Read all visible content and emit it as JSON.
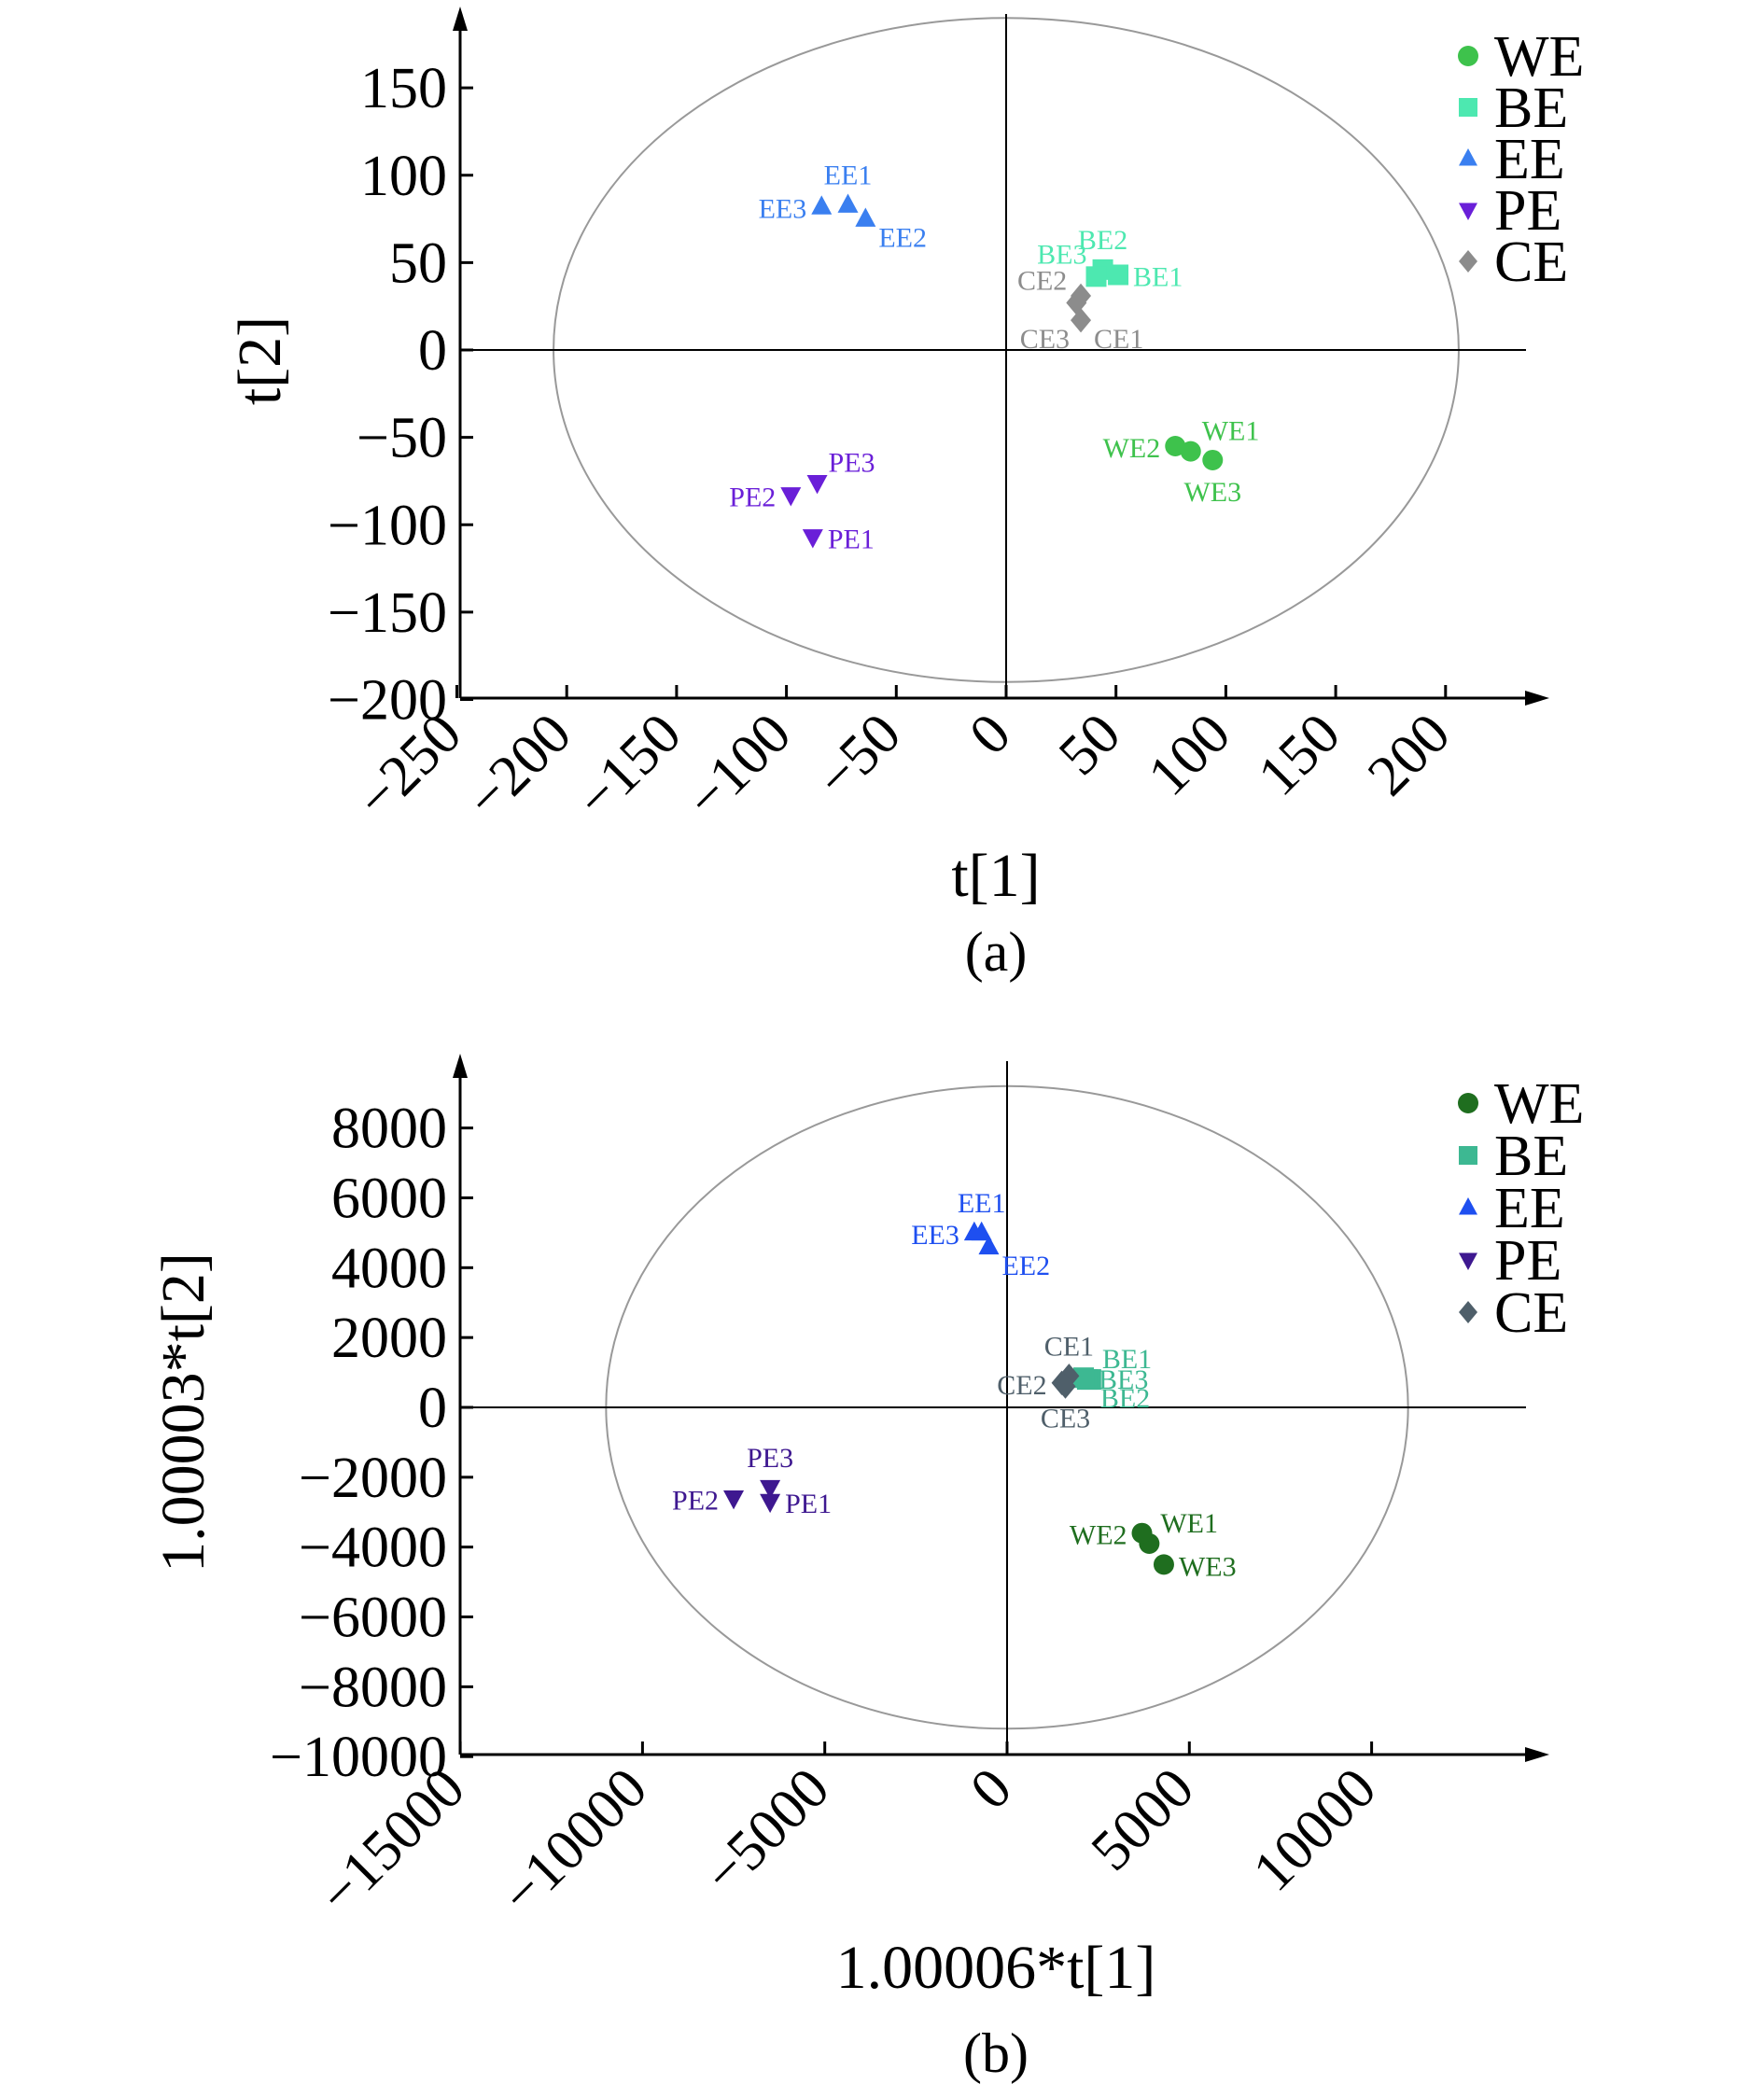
{
  "colors": {
    "a": {
      "WE": "#3ec24c",
      "BE": "#4de8b0",
      "EE": "#3a7ff0",
      "PE": "#6a1fd8",
      "CE": "#8c8c8c"
    },
    "b": {
      "WE": "#1f6e1f",
      "BE": "#3db892",
      "EE": "#1e4ff0",
      "PE": "#3e1890",
      "CE": "#4f5f6a"
    },
    "ellipse": "#999999",
    "axis": "#000000"
  },
  "chart_data": [
    {
      "type": "scatter",
      "panel": "a",
      "caption": "(a)",
      "xlabel": "t[1]",
      "ylabel": "t[2]",
      "xlim": [
        -250,
        250
      ],
      "ylim": [
        -200,
        200
      ],
      "xticks": [
        -250,
        -200,
        -150,
        -100,
        -50,
        0,
        50,
        100,
        150,
        200
      ],
      "xtick_labels": [
        "−250",
        "−200",
        "−150",
        "−100",
        "−50",
        "0",
        "50",
        "100",
        "150",
        "200"
      ],
      "yticks": [
        -200,
        -150,
        -100,
        -50,
        0,
        50,
        100,
        150
      ],
      "ytick_labels": [
        "−200",
        "−150",
        "−100",
        "−50",
        "0",
        "50",
        "100",
        "150"
      ],
      "ellipse": {
        "cx": 0,
        "cy": 0,
        "rx": 206,
        "ry": 190
      },
      "legend": {
        "position": "top-right",
        "entries": [
          {
            "label": "WE",
            "marker": "circle"
          },
          {
            "label": "BE",
            "marker": "square"
          },
          {
            "label": "EE",
            "marker": "triangle-up"
          },
          {
            "label": "PE",
            "marker": "triangle-down"
          },
          {
            "label": "CE",
            "marker": "diamond"
          }
        ]
      },
      "series": [
        {
          "name": "WE",
          "marker": "circle",
          "points": [
            {
              "label": "WE1",
              "x": 84,
              "y": -58,
              "anchor": "right-up"
            },
            {
              "label": "WE2",
              "x": 77,
              "y": -55,
              "anchor": "left"
            },
            {
              "label": "WE3",
              "x": 94,
              "y": -63,
              "anchor": "below"
            }
          ]
        },
        {
          "name": "BE",
          "marker": "square",
          "points": [
            {
              "label": "BE1",
              "x": 51,
              "y": 43,
              "anchor": "right"
            },
            {
              "label": "BE2",
              "x": 44,
              "y": 46,
              "anchor": "above"
            },
            {
              "label": "BE3",
              "x": 41,
              "y": 42,
              "anchor": "left-up"
            }
          ]
        },
        {
          "name": "EE",
          "marker": "triangle-up",
          "points": [
            {
              "label": "EE1",
              "x": -72,
              "y": 83,
              "anchor": "above"
            },
            {
              "label": "EE2",
              "x": -64,
              "y": 75,
              "anchor": "right-down"
            },
            {
              "label": "EE3",
              "x": -84,
              "y": 82,
              "anchor": "left"
            }
          ]
        },
        {
          "name": "PE",
          "marker": "triangle-down",
          "points": [
            {
              "label": "PE1",
              "x": -88,
              "y": -107,
              "anchor": "right"
            },
            {
              "label": "PE2",
              "x": -98,
              "y": -83,
              "anchor": "left"
            },
            {
              "label": "PE3",
              "x": -86,
              "y": -76,
              "anchor": "right-up"
            }
          ]
        },
        {
          "name": "CE",
          "marker": "diamond",
          "points": [
            {
              "label": "CE1",
              "x": 34,
              "y": 17,
              "anchor": "right-down"
            },
            {
              "label": "CE2",
              "x": 32,
              "y": 27,
              "anchor": "left-up"
            },
            {
              "label": "CE3",
              "x": 34,
              "y": 31,
              "anchor": "none"
            }
          ],
          "extra_labels": [
            {
              "label": "CE3",
              "x": 34,
              "y": 17,
              "anchor": "left-down"
            }
          ]
        }
      ]
    },
    {
      "type": "scatter",
      "panel": "b",
      "caption": "(b)",
      "xlabel": "1.00006*t[1]",
      "ylabel": "1.00003*t[2]",
      "xlim": [
        -15000,
        15000
      ],
      "ylim": [
        -10000,
        10000
      ],
      "xticks": [
        -15000,
        -10000,
        -5000,
        0,
        5000,
        10000
      ],
      "xtick_labels": [
        "−15000",
        "−10000",
        "−5000",
        "0",
        "5000",
        "10000"
      ],
      "yticks": [
        -10000,
        -8000,
        -6000,
        -4000,
        -2000,
        0,
        2000,
        4000,
        6000,
        8000
      ],
      "ytick_labels": [
        "−10000",
        "−8000",
        "−6000",
        "−4000",
        "−2000",
        "0",
        "2000",
        "4000",
        "6000",
        "8000"
      ],
      "ellipse": {
        "cx": 0,
        "cy": 0,
        "rx": 11000,
        "ry": 9200
      },
      "legend": {
        "position": "top-right",
        "entries": [
          {
            "label": "WE",
            "marker": "circle"
          },
          {
            "label": "BE",
            "marker": "square"
          },
          {
            "label": "EE",
            "marker": "triangle-up"
          },
          {
            "label": "PE",
            "marker": "triangle-down"
          },
          {
            "label": "CE",
            "marker": "diamond"
          }
        ]
      },
      "series": [
        {
          "name": "WE",
          "marker": "circle",
          "points": [
            {
              "label": "WE1",
              "x": 3900,
              "y": -3900,
              "anchor": "right-up"
            },
            {
              "label": "WE2",
              "x": 3700,
              "y": -3600,
              "anchor": "left"
            },
            {
              "label": "WE3",
              "x": 4300,
              "y": -4500,
              "anchor": "right"
            }
          ]
        },
        {
          "name": "BE",
          "marker": "square",
          "points": [
            {
              "label": "BE1",
              "x": 2300,
              "y": 800,
              "anchor": "right-up"
            },
            {
              "label": "BE2",
              "x": 2200,
              "y": 800,
              "anchor": "right-down"
            },
            {
              "label": "BE3",
              "x": 2100,
              "y": 850,
              "anchor": "right"
            }
          ]
        },
        {
          "name": "EE",
          "marker": "triangle-up",
          "points": [
            {
              "label": "EE1",
              "x": -700,
              "y": 5000,
              "anchor": "above"
            },
            {
              "label": "EE2",
              "x": -500,
              "y": 4600,
              "anchor": "right-down"
            },
            {
              "label": "EE3",
              "x": -900,
              "y": 5000,
              "anchor": "left"
            }
          ]
        },
        {
          "name": "PE",
          "marker": "triangle-down",
          "points": [
            {
              "label": "PE1",
              "x": -6500,
              "y": -2700,
              "anchor": "right"
            },
            {
              "label": "PE2",
              "x": -7500,
              "y": -2600,
              "anchor": "left"
            },
            {
              "label": "PE3",
              "x": -6500,
              "y": -2300,
              "anchor": "above"
            }
          ]
        },
        {
          "name": "CE",
          "marker": "diamond",
          "points": [
            {
              "label": "CE1",
              "x": 1700,
              "y": 900,
              "anchor": "above"
            },
            {
              "label": "CE2",
              "x": 1500,
              "y": 700,
              "anchor": "left"
            },
            {
              "label": "CE3",
              "x": 1600,
              "y": 600,
              "anchor": "below"
            }
          ]
        }
      ]
    }
  ]
}
